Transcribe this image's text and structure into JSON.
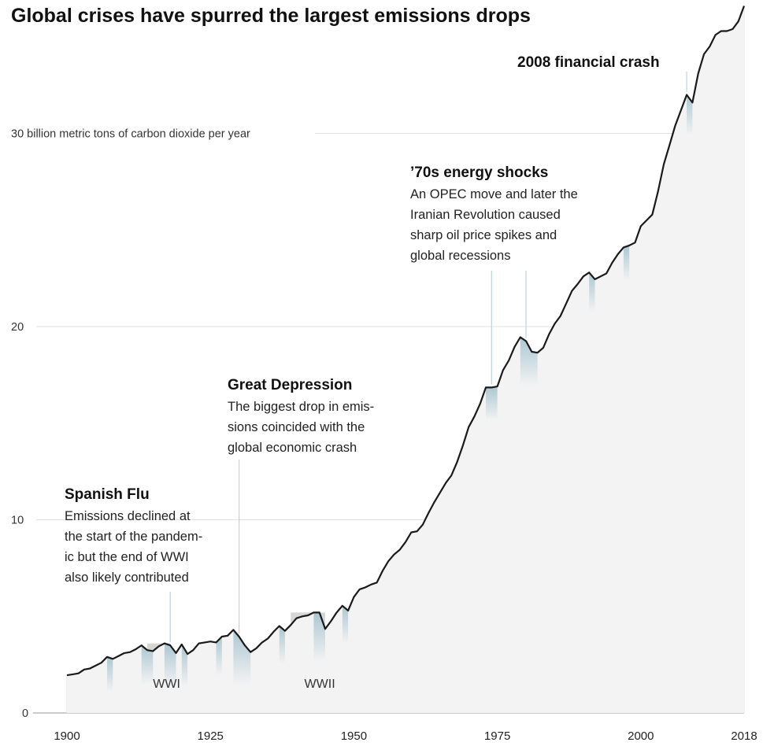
{
  "chart_data": {
    "type": "area",
    "title": "Global crises have spurred the largest emissions drops",
    "ylabel": "30 billion metric tons of carbon dioxide per year",
    "xlim": [
      1900,
      2018
    ],
    "ylim": [
      0,
      36.5
    ],
    "y_ticks": [
      {
        "value": 0,
        "label": "0"
      },
      {
        "value": 10,
        "label": "10"
      },
      {
        "value": 20,
        "label": "20"
      },
      {
        "value": 30,
        "label": "30 billion metric tons of carbon dioxide per year"
      }
    ],
    "x_ticks": [
      {
        "value": 1900,
        "label": "1900"
      },
      {
        "value": 1925,
        "label": "1925"
      },
      {
        "value": 1950,
        "label": "1950"
      },
      {
        "value": 1975,
        "label": "1975"
      },
      {
        "value": 2000,
        "label": "2000"
      },
      {
        "value": 2018,
        "label": "2018"
      }
    ],
    "grid": true,
    "series": [
      {
        "points": [
          [
            1900,
            1.95
          ],
          [
            1901,
            2.0
          ],
          [
            1902,
            2.05
          ],
          [
            1903,
            2.25
          ],
          [
            1904,
            2.3
          ],
          [
            1905,
            2.45
          ],
          [
            1906,
            2.6
          ],
          [
            1907,
            2.9
          ],
          [
            1908,
            2.8
          ],
          [
            1909,
            2.95
          ],
          [
            1910,
            3.1
          ],
          [
            1911,
            3.15
          ],
          [
            1912,
            3.3
          ],
          [
            1913,
            3.5
          ],
          [
            1914,
            3.25
          ],
          [
            1915,
            3.2
          ],
          [
            1916,
            3.45
          ],
          [
            1917,
            3.6
          ],
          [
            1918,
            3.5
          ],
          [
            1919,
            3.1
          ],
          [
            1920,
            3.55
          ],
          [
            1921,
            3.05
          ],
          [
            1922,
            3.25
          ],
          [
            1923,
            3.6
          ],
          [
            1924,
            3.65
          ],
          [
            1925,
            3.7
          ],
          [
            1926,
            3.65
          ],
          [
            1927,
            3.95
          ],
          [
            1928,
            4.0
          ],
          [
            1929,
            4.3
          ],
          [
            1930,
            3.95
          ],
          [
            1931,
            3.5
          ],
          [
            1932,
            3.15
          ],
          [
            1933,
            3.35
          ],
          [
            1934,
            3.65
          ],
          [
            1935,
            3.85
          ],
          [
            1936,
            4.2
          ],
          [
            1937,
            4.5
          ],
          [
            1938,
            4.25
          ],
          [
            1939,
            4.55
          ],
          [
            1940,
            4.9
          ],
          [
            1941,
            5.0
          ],
          [
            1942,
            5.05
          ],
          [
            1943,
            5.2
          ],
          [
            1944,
            5.2
          ],
          [
            1945,
            4.35
          ],
          [
            1946,
            4.75
          ],
          [
            1947,
            5.2
          ],
          [
            1948,
            5.55
          ],
          [
            1949,
            5.3
          ],
          [
            1950,
            6.0
          ],
          [
            1951,
            6.4
          ],
          [
            1952,
            6.5
          ],
          [
            1953,
            6.65
          ],
          [
            1954,
            6.75
          ],
          [
            1955,
            7.35
          ],
          [
            1956,
            7.85
          ],
          [
            1957,
            8.2
          ],
          [
            1958,
            8.45
          ],
          [
            1959,
            8.85
          ],
          [
            1960,
            9.35
          ],
          [
            1961,
            9.4
          ],
          [
            1962,
            9.75
          ],
          [
            1963,
            10.35
          ],
          [
            1964,
            10.9
          ],
          [
            1965,
            11.4
          ],
          [
            1966,
            11.9
          ],
          [
            1967,
            12.3
          ],
          [
            1968,
            13.0
          ],
          [
            1969,
            13.85
          ],
          [
            1970,
            14.8
          ],
          [
            1971,
            15.35
          ],
          [
            1972,
            16.0
          ],
          [
            1973,
            16.85
          ],
          [
            1974,
            16.85
          ],
          [
            1975,
            16.9
          ],
          [
            1976,
            17.75
          ],
          [
            1977,
            18.25
          ],
          [
            1978,
            18.95
          ],
          [
            1979,
            19.45
          ],
          [
            1980,
            19.25
          ],
          [
            1981,
            18.7
          ],
          [
            1982,
            18.65
          ],
          [
            1983,
            18.9
          ],
          [
            1984,
            19.6
          ],
          [
            1985,
            20.15
          ],
          [
            1986,
            20.55
          ],
          [
            1987,
            21.2
          ],
          [
            1988,
            21.85
          ],
          [
            1989,
            22.2
          ],
          [
            1990,
            22.6
          ],
          [
            1991,
            22.8
          ],
          [
            1992,
            22.45
          ],
          [
            1993,
            22.6
          ],
          [
            1994,
            22.75
          ],
          [
            1995,
            23.3
          ],
          [
            1996,
            23.75
          ],
          [
            1997,
            24.1
          ],
          [
            1998,
            24.2
          ],
          [
            1999,
            24.35
          ],
          [
            2000,
            25.2
          ],
          [
            2001,
            25.5
          ],
          [
            2002,
            25.8
          ],
          [
            2003,
            27.0
          ],
          [
            2004,
            28.4
          ],
          [
            2005,
            29.4
          ],
          [
            2006,
            30.4
          ],
          [
            2007,
            31.2
          ],
          [
            2008,
            32.0
          ],
          [
            2009,
            31.6
          ],
          [
            2010,
            33.1
          ],
          [
            2011,
            34.1
          ],
          [
            2012,
            34.5
          ],
          [
            2013,
            35.1
          ],
          [
            2014,
            35.3
          ],
          [
            2015,
            35.3
          ],
          [
            2016,
            35.4
          ],
          [
            2017,
            35.8
          ],
          [
            2018,
            36.6
          ]
        ]
      }
    ],
    "shaded_ranges": [
      {
        "label": "WWI",
        "start": 1914,
        "end": 1918
      },
      {
        "label": "WWII",
        "start": 1939,
        "end": 1945
      }
    ],
    "dips": [
      [
        1907,
        1908
      ],
      [
        1913,
        1915
      ],
      [
        1917,
        1919
      ],
      [
        1920,
        1921
      ],
      [
        1926,
        1927
      ],
      [
        1929,
        1932
      ],
      [
        1937,
        1938
      ],
      [
        1943,
        1945
      ],
      [
        1948,
        1949
      ],
      [
        1973,
        1975
      ],
      [
        1979,
        1982
      ],
      [
        1991,
        1992
      ],
      [
        1997,
        1998
      ],
      [
        2008,
        2009
      ]
    ],
    "annotations": [
      {
        "title": "Spanish Flu",
        "lines": [
          "Emissions declined at",
          "the start of the pandem-",
          "ic but the end of WWI",
          "also likely contributed"
        ],
        "x": 1918
      },
      {
        "title": "Great Depression",
        "lines": [
          "The biggest drop in emis-",
          "sions coincided with the",
          "global economic crash"
        ],
        "x": 1930
      },
      {
        "title": "’70s energy shocks",
        "lines": [
          "An OPEC move and later the",
          "Iranian Revolution caused",
          "sharp oil price spikes and",
          "global recessions"
        ],
        "x": [
          1974,
          1980
        ]
      },
      {
        "title": "2008 financial crash",
        "lines": [],
        "x": 2008
      }
    ],
    "colors": {
      "line": "#1a1a1a",
      "area": "#f3f3f3",
      "war_band": "#d6d6d6",
      "dip": "#9fbfcc",
      "grid": "#e2e2e2"
    }
  }
}
